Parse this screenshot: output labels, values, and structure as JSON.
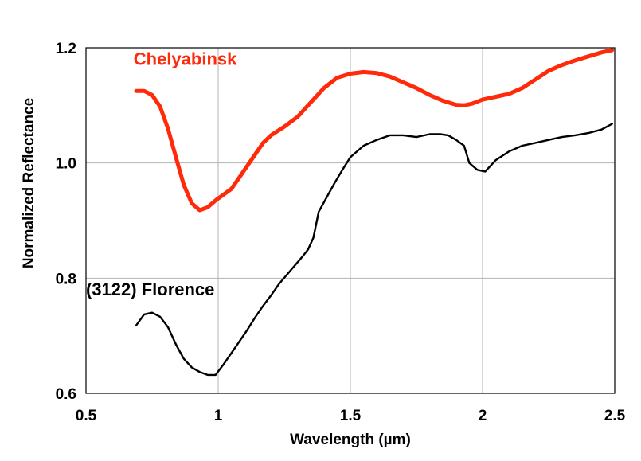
{
  "chart_data": {
    "type": "line",
    "title": "",
    "xlabel": "Wavelength (µm)",
    "ylabel": "Normalized Reflectance",
    "xlim": [
      0.5,
      2.5
    ],
    "ylim": [
      0.6,
      1.2
    ],
    "grid": true,
    "x_ticks": [
      "0.5",
      "1",
      "1.5",
      "2",
      "2.5"
    ],
    "y_ticks": [
      "0.6",
      "0.8",
      "1.0",
      "1.2"
    ],
    "series": [
      {
        "name": "Chelyabinsk",
        "color": "#ff2a0a",
        "x": [
          0.69,
          0.72,
          0.75,
          0.78,
          0.81,
          0.84,
          0.87,
          0.9,
          0.93,
          0.96,
          0.99,
          1.02,
          1.05,
          1.08,
          1.11,
          1.14,
          1.17,
          1.2,
          1.25,
          1.3,
          1.35,
          1.4,
          1.45,
          1.5,
          1.55,
          1.6,
          1.65,
          1.7,
          1.75,
          1.8,
          1.85,
          1.9,
          1.93,
          1.96,
          2.0,
          2.05,
          2.1,
          2.15,
          2.2,
          2.25,
          2.3,
          2.35,
          2.4,
          2.45,
          2.49
        ],
        "y": [
          1.125,
          1.125,
          1.118,
          1.098,
          1.06,
          1.01,
          0.962,
          0.93,
          0.918,
          0.923,
          0.935,
          0.945,
          0.955,
          0.975,
          0.995,
          1.015,
          1.035,
          1.048,
          1.063,
          1.08,
          1.105,
          1.13,
          1.148,
          1.155,
          1.158,
          1.156,
          1.15,
          1.14,
          1.13,
          1.118,
          1.108,
          1.101,
          1.1,
          1.103,
          1.11,
          1.115,
          1.12,
          1.13,
          1.145,
          1.16,
          1.17,
          1.178,
          1.185,
          1.192,
          1.196
        ]
      },
      {
        "name": "(3122) Florence",
        "color": "#000000",
        "x": [
          0.69,
          0.72,
          0.75,
          0.78,
          0.81,
          0.84,
          0.87,
          0.9,
          0.93,
          0.96,
          0.99,
          1.02,
          1.05,
          1.08,
          1.11,
          1.14,
          1.17,
          1.2,
          1.23,
          1.26,
          1.29,
          1.32,
          1.34,
          1.36,
          1.38,
          1.41,
          1.44,
          1.47,
          1.5,
          1.55,
          1.6,
          1.65,
          1.7,
          1.75,
          1.8,
          1.84,
          1.87,
          1.9,
          1.93,
          1.95,
          1.98,
          2.01,
          2.05,
          2.1,
          2.15,
          2.2,
          2.25,
          2.3,
          2.35,
          2.4,
          2.45,
          2.49
        ],
        "y": [
          0.718,
          0.737,
          0.74,
          0.733,
          0.715,
          0.685,
          0.66,
          0.645,
          0.637,
          0.632,
          0.632,
          0.65,
          0.67,
          0.69,
          0.71,
          0.732,
          0.752,
          0.77,
          0.79,
          0.806,
          0.822,
          0.838,
          0.85,
          0.87,
          0.915,
          0.94,
          0.965,
          0.988,
          1.01,
          1.03,
          1.04,
          1.048,
          1.048,
          1.045,
          1.05,
          1.05,
          1.048,
          1.04,
          1.03,
          1.0,
          0.988,
          0.985,
          1.005,
          1.02,
          1.03,
          1.035,
          1.04,
          1.045,
          1.048,
          1.052,
          1.058,
          1.068
        ]
      }
    ],
    "annotations": [
      {
        "text": "Chelyabinsk",
        "series": 0,
        "x": 0.68,
        "y": 1.17
      },
      {
        "text": "(3122) Florence",
        "series": 1,
        "x": 0.5,
        "y": 0.77
      }
    ]
  }
}
